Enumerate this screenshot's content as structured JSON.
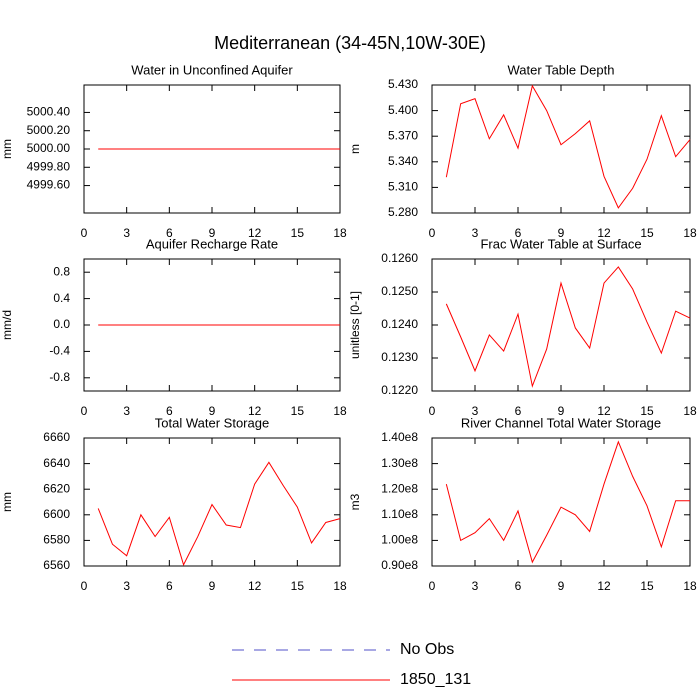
{
  "title": "Mediterranean (34-45N,10W-30E)",
  "legend": [
    {
      "label": "No Obs",
      "color": "#5050c8",
      "dashed": true
    },
    {
      "label": "1850_131",
      "color": "#ff0000",
      "dashed": false
    }
  ],
  "chart_data": [
    {
      "type": "line",
      "title": "Water in Unconfined Aquifer",
      "y_label": "mm",
      "color": "#ff0000",
      "x": [
        1,
        2,
        3,
        4,
        5,
        6,
        7,
        8,
        9,
        10,
        11,
        12,
        13,
        14,
        15,
        16,
        17,
        18
      ],
      "values": [
        5000,
        5000,
        5000,
        5000,
        5000,
        5000,
        5000,
        5000,
        5000,
        5000,
        5000,
        5000,
        5000,
        5000,
        5000,
        5000,
        5000,
        5000
      ],
      "xlim": [
        0,
        18
      ],
      "xticks": [
        0,
        3,
        6,
        9,
        12,
        15,
        18
      ],
      "ylim": [
        4999.3,
        5000.7
      ],
      "yticks": [
        {
          "value": 4999.6,
          "label": "4999.60"
        },
        {
          "value": 4999.8,
          "label": "4999.80"
        },
        {
          "value": 5000,
          "label": "5000.00"
        },
        {
          "value": 5000.2,
          "label": "5000.20"
        },
        {
          "value": 5000.4,
          "label": "5000.40"
        }
      ]
    },
    {
      "type": "line",
      "title": "Water Table Depth",
      "y_label": "m",
      "color": "#ff0000",
      "x": [
        1,
        2,
        3,
        4,
        5,
        6,
        7,
        8,
        9,
        10,
        11,
        12,
        13,
        14,
        15,
        16,
        17,
        18
      ],
      "values": [
        5.322,
        5.408,
        5.414,
        5.367,
        5.395,
        5.356,
        5.429,
        5.4,
        5.36,
        5.373,
        5.388,
        5.323,
        5.286,
        5.309,
        5.343,
        5.394,
        5.346,
        5.366
      ],
      "xlim": [
        0,
        18
      ],
      "xticks": [
        0,
        3,
        6,
        9,
        12,
        15,
        18
      ],
      "ylim": [
        5.28,
        5.43
      ],
      "yticks": [
        {
          "value": 5.28,
          "label": "5.280"
        },
        {
          "value": 5.31,
          "label": "5.310"
        },
        {
          "value": 5.34,
          "label": "5.340"
        },
        {
          "value": 5.37,
          "label": "5.370"
        },
        {
          "value": 5.4,
          "label": "5.400"
        },
        {
          "value": 5.43,
          "label": "5.430"
        }
      ]
    },
    {
      "type": "line",
      "title": "Aquifer Recharge Rate",
      "y_label": "mm/d",
      "color": "#ff0000",
      "x": [
        1,
        2,
        3,
        4,
        5,
        6,
        7,
        8,
        9,
        10,
        11,
        12,
        13,
        14,
        15,
        16,
        17,
        18
      ],
      "values": [
        0,
        0,
        0,
        0,
        0,
        0,
        0,
        0,
        0,
        0,
        0,
        0,
        0,
        0,
        0,
        0,
        0,
        0
      ],
      "xlim": [
        0,
        18
      ],
      "xticks": [
        0,
        3,
        6,
        9,
        12,
        15,
        18
      ],
      "ylim": [
        -1,
        1
      ],
      "yticks": [
        -0.8,
        -0.4,
        {
          "value": 0,
          "label": "0.0"
        },
        0.4,
        0.8
      ]
    },
    {
      "type": "line",
      "title": "Frac Water Table at Surface",
      "y_label": "unitless [0-1]",
      "color": "#ff0000",
      "x": [
        1,
        2,
        3,
        4,
        5,
        6,
        7,
        8,
        9,
        10,
        11,
        12,
        13,
        14,
        15,
        16,
        17,
        18
      ],
      "values": [
        0.12464,
        0.12364,
        0.12261,
        0.1237,
        0.12321,
        0.12433,
        0.12215,
        0.12327,
        0.12527,
        0.12391,
        0.1233,
        0.12527,
        0.12576,
        0.12509,
        0.12409,
        0.12315,
        0.12442,
        0.12421
      ],
      "xlim": [
        0,
        18
      ],
      "xticks": [
        0,
        3,
        6,
        9,
        12,
        15,
        18
      ],
      "ylim": [
        0.122,
        0.126
      ],
      "yticks": [
        {
          "value": 0.122,
          "label": "0.1220"
        },
        {
          "value": 0.123,
          "label": "0.1230"
        },
        {
          "value": 0.124,
          "label": "0.1240"
        },
        {
          "value": 0.125,
          "label": "0.1250"
        },
        {
          "value": 0.126,
          "label": "0.1260"
        }
      ]
    },
    {
      "type": "line",
      "title": "Total Water Storage",
      "y_label": "mm",
      "color": "#ff0000",
      "x": [
        1,
        2,
        3,
        4,
        5,
        6,
        7,
        8,
        9,
        10,
        11,
        12,
        13,
        14,
        15,
        16,
        17,
        18
      ],
      "values": [
        6605,
        6577,
        6568,
        6600,
        6583,
        6598,
        6561,
        6583,
        6608,
        6592,
        6590,
        6624,
        6641,
        6623,
        6606,
        6578,
        6594,
        6597
      ],
      "xlim": [
        0,
        18
      ],
      "xticks": [
        0,
        3,
        6,
        9,
        12,
        15,
        18
      ],
      "ylim": [
        6560,
        6660
      ],
      "yticks": [
        6560,
        6580,
        6600,
        6620,
        6640,
        6660
      ]
    },
    {
      "type": "line",
      "title": "River Channel Total Water Storage",
      "y_label": "m3",
      "color": "#ff0000",
      "x": [
        1,
        2,
        3,
        4,
        5,
        6,
        7,
        8,
        9,
        10,
        11,
        12,
        13,
        14,
        15,
        16,
        17,
        18
      ],
      "values": [
        122000000,
        100000000,
        103000000,
        108500000,
        100000000,
        111500000,
        91500000,
        102000000,
        113000000,
        110000000,
        103500000,
        122000000,
        138500000,
        125000000,
        113500000,
        97500000,
        115500000,
        115500000
      ],
      "xlim": [
        0,
        18
      ],
      "xticks": [
        0,
        3,
        6,
        9,
        12,
        15,
        18
      ],
      "ylim": [
        90000000,
        140000000
      ],
      "yticks": [
        {
          "value": 90000000,
          "label": "0.90e8"
        },
        {
          "value": 100000000,
          "label": "1.00e8"
        },
        {
          "value": 110000000,
          "label": "1.10e8"
        },
        {
          "value": 120000000,
          "label": "1.20e8"
        },
        {
          "value": 130000000,
          "label": "1.30e8"
        },
        {
          "value": 140000000,
          "label": "1.40e8"
        }
      ]
    }
  ]
}
